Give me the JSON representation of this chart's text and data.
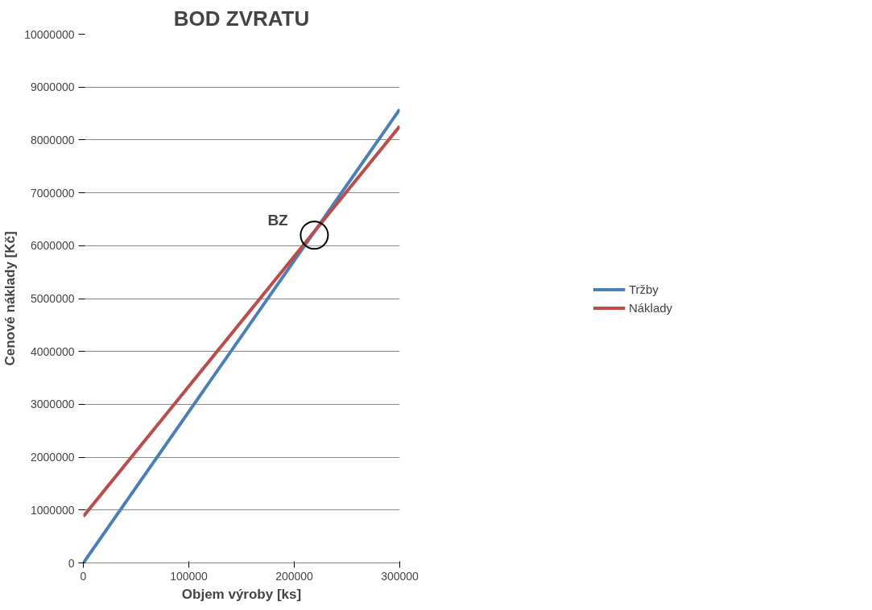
{
  "chart_data": {
    "type": "line",
    "title": "BOD ZVRATU",
    "xlabel": "Objem výroby [ks]",
    "ylabel": "Cenové náklady [Kč]",
    "x": [
      0,
      300000
    ],
    "series": [
      {
        "name": "Tržby",
        "color": "#4a7ebb",
        "values": [
          0,
          8580000
        ]
      },
      {
        "name": "Náklady",
        "color": "#be4b48",
        "values": [
          880000,
          8260000
        ]
      }
    ],
    "xlim": [
      0,
      300000
    ],
    "xticks": [
      0,
      100000,
      200000,
      300000
    ],
    "ylim": [
      0,
      10000000
    ],
    "yticks": [
      0,
      1000000,
      2000000,
      3000000,
      4000000,
      5000000,
      6000000,
      7000000,
      8000000,
      9000000,
      10000000
    ],
    "annotations": [
      {
        "text": "BZ",
        "x": 219000,
        "y": 6200000
      }
    ],
    "grid": "y",
    "legend": "right",
    "marker": "none",
    "line_style": "solid"
  }
}
